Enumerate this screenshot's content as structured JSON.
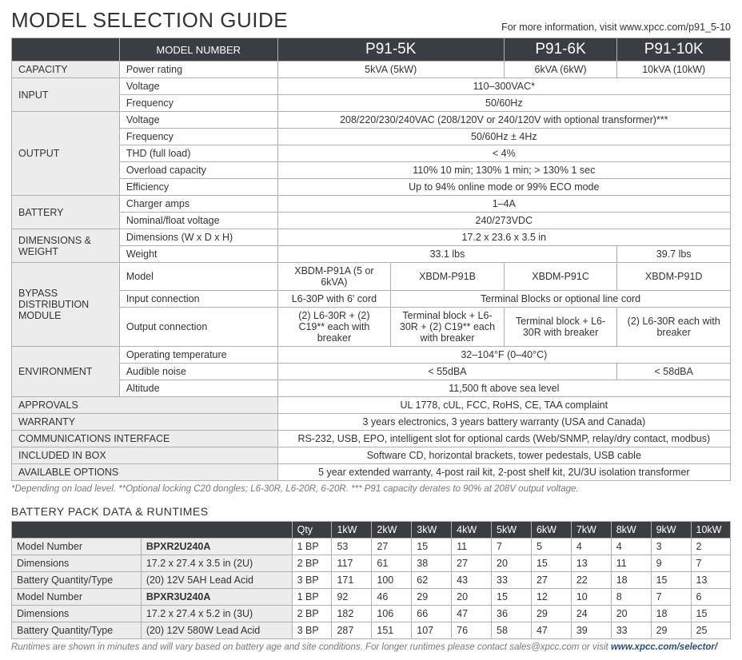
{
  "colors": {
    "header_bg": "#3a3e43",
    "header_text": "#ffffff",
    "section_bg": "#ececec",
    "border": "#b0b0b0",
    "body_text": "#333333",
    "footnote_text": "#777777",
    "link": "#2a4d7a"
  },
  "typography": {
    "title_fontsize_pt": 20,
    "model_header_fontsize_pt": 14,
    "body_fontsize_pt": 9.5,
    "footnote_fontsize_pt": 8.5,
    "font_family": "Segoe UI / Arial"
  },
  "page": {
    "title": "MODEL SELECTION GUIDE",
    "info_text": "For more information, visit www.xpcc.com/p91_5-10",
    "footnote": "*Depending on load level. **Optional locking C20 dongles; L6-30R, L6-20R, 6-20R. *** P91 capacity derates to 90% at 208V output voltage."
  },
  "spec": {
    "header": {
      "label": "MODEL NUMBER",
      "models": [
        "P91-5K",
        "P91-6K",
        "P91-10K"
      ]
    },
    "col_widths_pct": [
      15,
      22,
      15.75,
      15.75,
      15.75,
      15.75
    ],
    "sections": [
      {
        "name": "CAPACITY",
        "rows": [
          {
            "param": "Power rating",
            "cells": [
              {
                "span": 2,
                "text": "5kVA (5kW)"
              },
              {
                "span": 1,
                "text": "6kVA (6kW)"
              },
              {
                "span": 1,
                "text": "10kVA (10kW)"
              }
            ]
          }
        ]
      },
      {
        "name": "INPUT",
        "rows": [
          {
            "param": "Voltage",
            "cells": [
              {
                "span": 4,
                "text": "110–300VAC*"
              }
            ]
          },
          {
            "param": "Frequency",
            "cells": [
              {
                "span": 4,
                "text": "50/60Hz"
              }
            ]
          }
        ]
      },
      {
        "name": "OUTPUT",
        "rows": [
          {
            "param": "Voltage",
            "cells": [
              {
                "span": 4,
                "text": "208/220/230/240VAC (208/120V or 240/120V with optional transformer)***"
              }
            ]
          },
          {
            "param": "Frequency",
            "cells": [
              {
                "span": 4,
                "text": "50/60Hz ± 4Hz"
              }
            ]
          },
          {
            "param": "THD (full load)",
            "cells": [
              {
                "span": 4,
                "text": "< 4%"
              }
            ]
          },
          {
            "param": "Overload capacity",
            "cells": [
              {
                "span": 4,
                "text": "110% 10 min; 130% 1 min; > 130% 1 sec"
              }
            ]
          },
          {
            "param": "Efficiency",
            "cells": [
              {
                "span": 4,
                "text": "Up to 94% online mode or 99% ECO mode"
              }
            ]
          }
        ]
      },
      {
        "name": "BATTERY",
        "rows": [
          {
            "param": "Charger amps",
            "cells": [
              {
                "span": 4,
                "text": "1–4A"
              }
            ]
          },
          {
            "param": "Nominal/float voltage",
            "cells": [
              {
                "span": 4,
                "text": "240/273VDC"
              }
            ]
          }
        ]
      },
      {
        "name": "DIMENSIONS & WEIGHT",
        "rows": [
          {
            "param": "Dimensions (W x D x H)",
            "cells": [
              {
                "span": 4,
                "text": "17.2 x 23.6 x 3.5 in"
              }
            ]
          },
          {
            "param": "Weight",
            "cells": [
              {
                "span": 3,
                "text": "33.1 lbs"
              },
              {
                "span": 1,
                "text": "39.7 lbs"
              }
            ]
          }
        ]
      },
      {
        "name": "BYPASS DISTRIBUTION MODULE",
        "rows": [
          {
            "param": "Model",
            "cells": [
              {
                "span": 1,
                "text": "XBDM-P91A (5 or 6kVA)"
              },
              {
                "span": 1,
                "text": "XBDM-P91B"
              },
              {
                "span": 1,
                "text": "XBDM-P91C"
              },
              {
                "span": 1,
                "text": "XBDM-P91D"
              }
            ]
          },
          {
            "param": "Input connection",
            "cells": [
              {
                "span": 1,
                "text": "L6-30P with 6' cord"
              },
              {
                "span": 3,
                "text": "Terminal Blocks or optional line cord"
              }
            ]
          },
          {
            "param": "Output connection",
            "cells": [
              {
                "span": 1,
                "text": "(2) L6-30R + (2) C19** each with breaker"
              },
              {
                "span": 1,
                "text": "Terminal block + L6-30R + (2) C19** each with breaker"
              },
              {
                "span": 1,
                "text": "Terminal block + L6-30R with breaker"
              },
              {
                "span": 1,
                "text": "(2) L6-30R each with breaker"
              }
            ]
          }
        ]
      },
      {
        "name": "ENVIRONMENT",
        "rows": [
          {
            "param": "Operating temperature",
            "cells": [
              {
                "span": 4,
                "text": "32–104°F (0–40°C)"
              }
            ]
          },
          {
            "param": "Audible noise",
            "cells": [
              {
                "span": 3,
                "text": "< 55dBA"
              },
              {
                "span": 1,
                "text": "< 58dBA"
              }
            ]
          },
          {
            "param": "Altitude",
            "cells": [
              {
                "span": 4,
                "text": "11,500 ft above sea level"
              }
            ]
          }
        ]
      },
      {
        "name": "APPROVALS",
        "full": true,
        "rows": [
          {
            "param": null,
            "cells": [
              {
                "span": 4,
                "text": "UL 1778, cUL, FCC, RoHS, CE, TAA complaint"
              }
            ]
          }
        ]
      },
      {
        "name": "WARRANTY",
        "full": true,
        "rows": [
          {
            "param": null,
            "cells": [
              {
                "span": 4,
                "text": "3 years electronics, 3 years battery warranty (USA and Canada)"
              }
            ]
          }
        ]
      },
      {
        "name": "COMMUNICATIONS INTERFACE",
        "full": true,
        "rows": [
          {
            "param": null,
            "cells": [
              {
                "span": 4,
                "text": "RS-232, USB, EPO, intelligent slot for optional cards (Web/SNMP, relay/dry contact, modbus)"
              }
            ]
          }
        ]
      },
      {
        "name": "INCLUDED IN BOX",
        "full": true,
        "rows": [
          {
            "param": null,
            "cells": [
              {
                "span": 4,
                "text": "Software CD, horizontal brackets, tower pedestals, USB cable"
              }
            ]
          }
        ]
      },
      {
        "name": "AVAILABLE OPTIONS",
        "full": true,
        "rows": [
          {
            "param": null,
            "cells": [
              {
                "span": 4,
                "text": "5 year extended warranty, 4-post rail kit, 2-post shelf kit, 2U/3U isolation transformer"
              }
            ]
          }
        ]
      }
    ]
  },
  "runtimes": {
    "title": "BATTERY PACK DATA & RUNTIMES",
    "head_cols": [
      "Qty",
      "1kW",
      "2kW",
      "3kW",
      "4kW",
      "5kW",
      "6kW",
      "7kW",
      "8kW",
      "9kW",
      "10kW"
    ],
    "label_col_width_pct": 18,
    "value_col_width_pct": 21,
    "data_col_width_pct": 5.55,
    "groups": [
      {
        "rows": [
          {
            "label": "Model Number",
            "value": "BPXR2U240A",
            "bold": true,
            "qty": "1 BP",
            "vals": [
              53,
              27,
              15,
              11,
              7,
              5,
              4,
              4,
              3,
              2
            ]
          },
          {
            "label": "Dimensions",
            "value": "17.2 x 27.4 x 3.5 in (2U)",
            "bold": false,
            "qty": "2 BP",
            "vals": [
              117,
              61,
              38,
              27,
              20,
              15,
              13,
              11,
              9,
              7
            ]
          },
          {
            "label": "Battery Quantity/Type",
            "value": "(20) 12V 5AH Lead Acid",
            "bold": false,
            "qty": "3 BP",
            "vals": [
              171,
              100,
              62,
              43,
              33,
              27,
              22,
              18,
              15,
              13
            ]
          }
        ]
      },
      {
        "rows": [
          {
            "label": "Model Number",
            "value": "BPXR3U240A",
            "bold": true,
            "qty": "1 BP",
            "vals": [
              92,
              46,
              29,
              20,
              15,
              12,
              10,
              8,
              7,
              6
            ]
          },
          {
            "label": "Dimensions",
            "value": "17.2 x 27.4 x 5.2 in (3U)",
            "bold": false,
            "qty": "2 BP",
            "vals": [
              182,
              106,
              66,
              47,
              36,
              29,
              24,
              20,
              18,
              15
            ]
          },
          {
            "label": "Battery Quantity/Type",
            "value": "(20) 12V 580W Lead Acid",
            "bold": false,
            "qty": "3 BP",
            "vals": [
              287,
              151,
              107,
              76,
              58,
              47,
              39,
              33,
              29,
              25
            ]
          }
        ]
      }
    ],
    "footnote_text": "Runtimes are shown in minutes and will vary based on battery age and site conditions. For longer runtimes please contact sales@xpcc.com or visit ",
    "footnote_link": "www.xpcc.com/selector/"
  }
}
